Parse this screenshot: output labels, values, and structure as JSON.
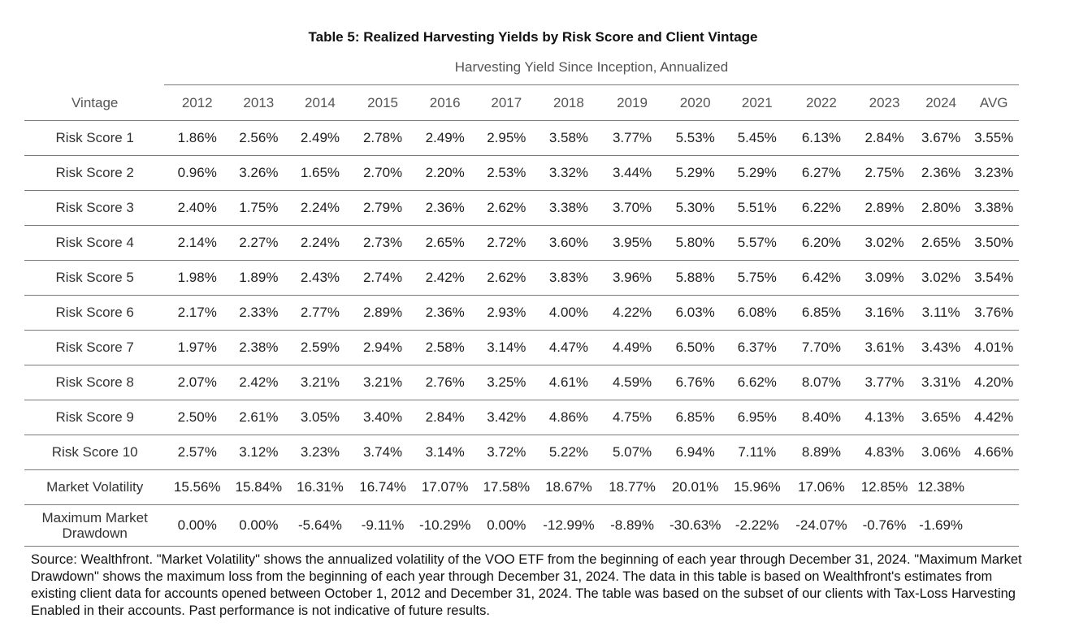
{
  "title": "Table 5: Realized Harvesting Yields by Risk Score and Client Vintage",
  "subtitle": "Harvesting Yield Since Inception, Annualized",
  "table": {
    "header": [
      "Vintage",
      "2012",
      "2013",
      "2014",
      "2015",
      "2016",
      "2017",
      "2018",
      "2019",
      "2020",
      "2021",
      "2022",
      "2023",
      "2024",
      "AVG"
    ],
    "rows": [
      {
        "label": "Risk Score 1",
        "cells": [
          "1.86%",
          "2.56%",
          "2.49%",
          "2.78%",
          "2.49%",
          "2.95%",
          "3.58%",
          "3.77%",
          "5.53%",
          "5.45%",
          "6.13%",
          "2.84%",
          "3.67%",
          "3.55%"
        ]
      },
      {
        "label": "Risk Score 2",
        "cells": [
          "0.96%",
          "3.26%",
          "1.65%",
          "2.70%",
          "2.20%",
          "2.53%",
          "3.32%",
          "3.44%",
          "5.29%",
          "5.29%",
          "6.27%",
          "2.75%",
          "2.36%",
          "3.23%"
        ]
      },
      {
        "label": "Risk Score 3",
        "cells": [
          "2.40%",
          "1.75%",
          "2.24%",
          "2.79%",
          "2.36%",
          "2.62%",
          "3.38%",
          "3.70%",
          "5.30%",
          "5.51%",
          "6.22%",
          "2.89%",
          "2.80%",
          "3.38%"
        ]
      },
      {
        "label": "Risk Score 4",
        "cells": [
          "2.14%",
          "2.27%",
          "2.24%",
          "2.73%",
          "2.65%",
          "2.72%",
          "3.60%",
          "3.95%",
          "5.80%",
          "5.57%",
          "6.20%",
          "3.02%",
          "2.65%",
          "3.50%"
        ]
      },
      {
        "label": "Risk Score 5",
        "cells": [
          "1.98%",
          "1.89%",
          "2.43%",
          "2.74%",
          "2.42%",
          "2.62%",
          "3.83%",
          "3.96%",
          "5.88%",
          "5.75%",
          "6.42%",
          "3.09%",
          "3.02%",
          "3.54%"
        ]
      },
      {
        "label": "Risk Score 6",
        "cells": [
          "2.17%",
          "2.33%",
          "2.77%",
          "2.89%",
          "2.36%",
          "2.93%",
          "4.00%",
          "4.22%",
          "6.03%",
          "6.08%",
          "6.85%",
          "3.16%",
          "3.11%",
          "3.76%"
        ]
      },
      {
        "label": "Risk Score 7",
        "cells": [
          "1.97%",
          "2.38%",
          "2.59%",
          "2.94%",
          "2.58%",
          "3.14%",
          "4.47%",
          "4.49%",
          "6.50%",
          "6.37%",
          "7.70%",
          "3.61%",
          "3.43%",
          "4.01%"
        ]
      },
      {
        "label": "Risk Score 8",
        "cells": [
          "2.07%",
          "2.42%",
          "3.21%",
          "3.21%",
          "2.76%",
          "3.25%",
          "4.61%",
          "4.59%",
          "6.76%",
          "6.62%",
          "8.07%",
          "3.77%",
          "3.31%",
          "4.20%"
        ]
      },
      {
        "label": "Risk Score 9",
        "cells": [
          "2.50%",
          "2.61%",
          "3.05%",
          "3.40%",
          "2.84%",
          "3.42%",
          "4.86%",
          "4.75%",
          "6.85%",
          "6.95%",
          "8.40%",
          "4.13%",
          "3.65%",
          "4.42%"
        ]
      },
      {
        "label": "Risk Score 10",
        "cells": [
          "2.57%",
          "3.12%",
          "3.23%",
          "3.74%",
          "3.14%",
          "3.72%",
          "5.22%",
          "5.07%",
          "6.94%",
          "7.11%",
          "8.89%",
          "4.83%",
          "3.06%",
          "4.66%"
        ]
      },
      {
        "label": "Market Volatility",
        "cells": [
          "15.56%",
          "15.84%",
          "16.31%",
          "16.74%",
          "17.07%",
          "17.58%",
          "18.67%",
          "18.77%",
          "20.01%",
          "15.96%",
          "17.06%",
          "12.85%",
          "12.38%",
          ""
        ]
      },
      {
        "label": "Maximum Market Drawdown",
        "cells": [
          "0.00%",
          "0.00%",
          "-5.64%",
          "-9.11%",
          "-10.29%",
          "0.00%",
          "-12.99%",
          "-8.89%",
          "-30.63%",
          "-2.22%",
          "-24.07%",
          "-0.76%",
          "-1.69%",
          ""
        ]
      }
    ]
  },
  "source_note": "Source: Wealthfront. \"Market Volatility\" shows the annualized volatility of the VOO ETF from the beginning of each year through December 31, 2024. \"Maximum Market Drawdown\" shows the maximum loss from the beginning of each year through December 31, 2024. The data in this table is based on Wealthfront's estimates from existing client data for accounts opened between October 1, 2012 and December 31, 2024. The table was based on the subset of our clients with Tax-Loss Harvesting Enabled in their accounts. Past performance is not indicative of future results."
}
